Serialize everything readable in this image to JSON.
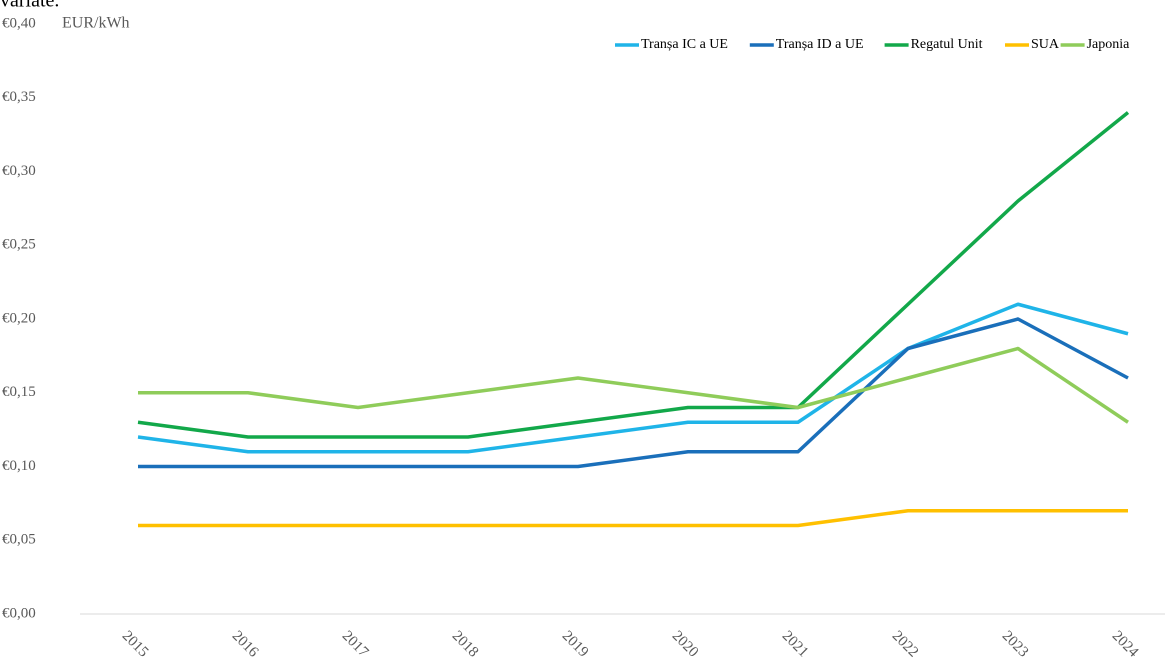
{
  "chart_data": {
    "type": "line",
    "caption": "variate.",
    "y_label": "EUR/kWh",
    "categories": [
      "2015",
      "2016",
      "2017",
      "2018",
      "2019",
      "2020",
      "2021",
      "2022",
      "2023",
      "2024"
    ],
    "series": [
      {
        "name": "Tranșa IC a UE",
        "color": "#1fb4e8",
        "values": [
          0.12,
          0.11,
          0.11,
          0.11,
          0.12,
          0.13,
          0.13,
          0.18,
          0.21,
          0.19
        ]
      },
      {
        "name": "Tranșa ID a UE",
        "color": "#1a6fba",
        "values": [
          0.1,
          0.1,
          0.1,
          0.1,
          0.1,
          0.11,
          0.11,
          0.18,
          0.2,
          0.16
        ]
      },
      {
        "name": "Regatul Unit",
        "color": "#12a84a",
        "values": [
          0.13,
          0.12,
          0.12,
          0.12,
          0.13,
          0.14,
          0.14,
          0.21,
          0.28,
          0.34
        ]
      },
      {
        "name": "SUA",
        "color": "#ffc000",
        "values": [
          0.06,
          0.06,
          0.06,
          0.06,
          0.06,
          0.06,
          0.06,
          0.07,
          0.07,
          0.07
        ]
      },
      {
        "name": "Japonia",
        "color": "#8fcc5a",
        "values": [
          0.15,
          0.15,
          0.14,
          0.15,
          0.16,
          0.15,
          0.14,
          0.16,
          0.18,
          0.13
        ]
      }
    ],
    "ylim": [
      0,
      0.4
    ],
    "yticks": [
      {
        "value": 0,
        "label": "€0,00"
      },
      {
        "value": 0.05,
        "label": "€0,05"
      },
      {
        "value": 0.1,
        "label": "€0,10"
      },
      {
        "value": 0.15,
        "label": "€0,15"
      },
      {
        "value": 0.2,
        "label": "€0,20"
      },
      {
        "value": 0.25,
        "label": "€0,25"
      },
      {
        "value": 0.3,
        "label": "€0,30"
      },
      {
        "value": 0.35,
        "label": "€0,35"
      },
      {
        "value": 0.4,
        "label": "€0,40"
      }
    ],
    "grid": false,
    "legend": "top-right"
  }
}
